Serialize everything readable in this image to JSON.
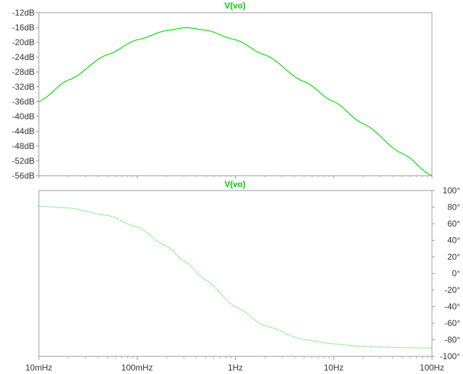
{
  "chart_data": [
    {
      "type": "line",
      "title": "V(vo)",
      "x_scale": "log",
      "xlim": [
        0.01,
        100
      ],
      "ylim": [
        -56,
        -12
      ],
      "y_ticks": [
        "-12dB",
        "-16dB",
        "-20dB",
        "-24dB",
        "-28dB",
        "-32dB",
        "-36dB",
        "-40dB",
        "-44dB",
        "-48dB",
        "-52dB",
        "-56dB"
      ],
      "series": [
        {
          "color": "#00dd00",
          "x": [
            0.01,
            0.02,
            0.05,
            0.1,
            0.2,
            0.316,
            0.5,
            1,
            2,
            5,
            10,
            20,
            50,
            100
          ],
          "y": [
            -36.0,
            -30.2,
            -23.3,
            -19.3,
            -16.8,
            -16.0,
            -16.7,
            -19.3,
            -23.4,
            -30.6,
            -36.0,
            -42.0,
            -50.0,
            -56.0
          ]
        }
      ]
    },
    {
      "type": "line",
      "title": "V(vo)",
      "x_scale": "log",
      "xlim": [
        0.01,
        100
      ],
      "ylim": [
        -100,
        100
      ],
      "y_ticks": [
        "100°",
        "80°",
        "60°",
        "40°",
        "20°",
        "0°",
        "-20°",
        "-40°",
        "-60°",
        "-80°",
        "-100°"
      ],
      "x_ticks": [
        "10mHz",
        "100mHz",
        "1Hz",
        "10Hz",
        "100Hz"
      ],
      "series": [
        {
          "color": "#00dd00",
          "style": "dotted",
          "x": [
            0.01,
            0.02,
            0.05,
            0.1,
            0.2,
            0.3,
            0.5,
            1,
            2,
            5,
            10,
            20,
            50,
            100
          ],
          "y": [
            81,
            79,
            70,
            56,
            33,
            15,
            -8,
            -40,
            -63,
            -80,
            -85,
            -88,
            -89.5,
            -90
          ]
        }
      ]
    }
  ]
}
